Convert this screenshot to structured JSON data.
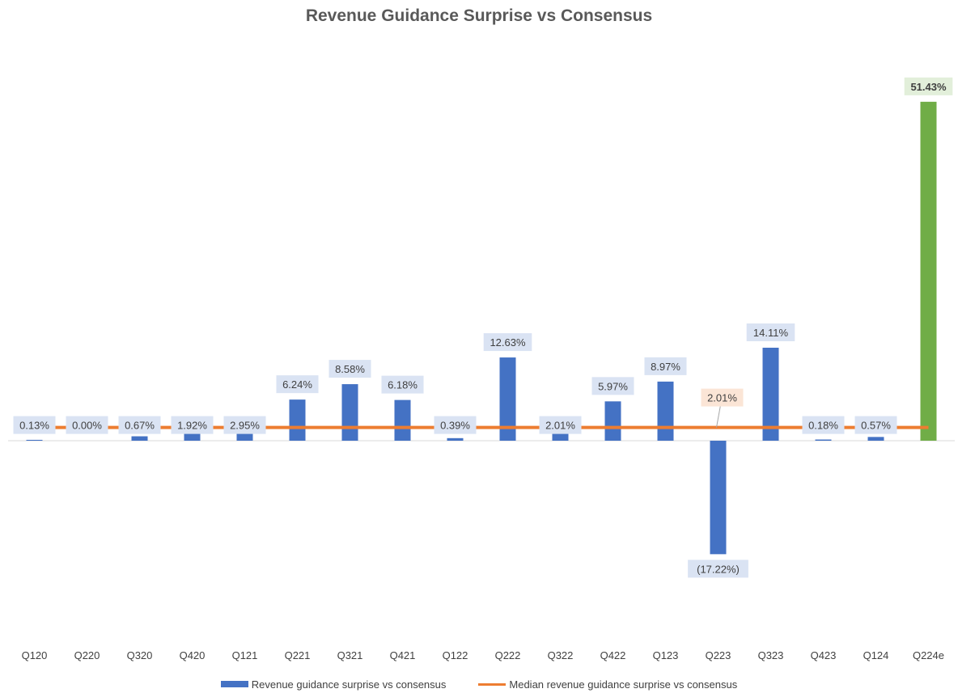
{
  "chart_data": {
    "type": "bar",
    "title": "Revenue Guidance Surprise vs Consensus",
    "categories": [
      "Q120",
      "Q220",
      "Q320",
      "Q420",
      "Q121",
      "Q221",
      "Q321",
      "Q421",
      "Q122",
      "Q222",
      "Q322",
      "Q422",
      "Q123",
      "Q223",
      "Q323",
      "Q423",
      "Q124",
      "Q224e"
    ],
    "series": [
      {
        "name": "Revenue guidance surprise vs consensus",
        "type": "bar",
        "values": [
          0.13,
          0.0,
          0.67,
          1.92,
          2.95,
          6.24,
          8.58,
          6.18,
          0.39,
          12.63,
          2.01,
          5.97,
          8.97,
          -17.22,
          14.11,
          0.18,
          0.57,
          51.43
        ],
        "labels": [
          "0.13%",
          "0.00%",
          "0.67%",
          "1.92%",
          "2.95%",
          "6.24%",
          "8.58%",
          "6.18%",
          "0.39%",
          "12.63%",
          "2.01%",
          "5.97%",
          "8.97%",
          "(17.22%)",
          "14.11%",
          "0.18%",
          "0.57%",
          "51.43%"
        ],
        "color": "#4472C4",
        "highlight_color": "#70AD47",
        "highlight_index": 17
      },
      {
        "name": "Median revenue guidance surprise vs consensus",
        "type": "line",
        "value": 2.01,
        "label": "2.01%",
        "color": "#ED7D31"
      }
    ],
    "ylim": [
      -30,
      54
    ],
    "grid": false,
    "legend": "bottom"
  }
}
